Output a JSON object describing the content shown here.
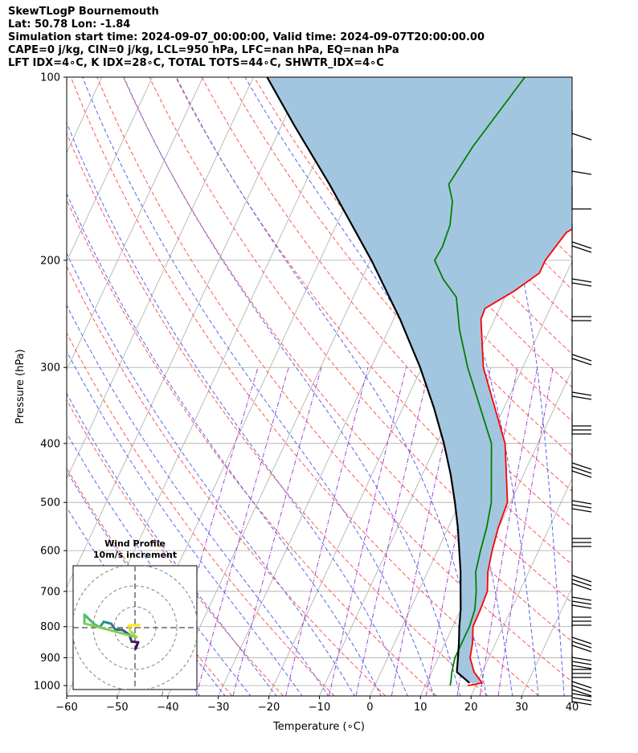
{
  "header": {
    "title": "SkewTLogP Bournemouth",
    "location": "Lat: 50.78   Lon: -1.84",
    "times": "Simulation start time: 2024-09-07_00:00:00, Valid time: 2024-09-07T20:00:00.00",
    "indices1": "CAPE=0 j/kg, CIN=0 j/kg, LCL=950 hPa, LFC=nan hPa, EQ=nan hPa",
    "indices2": "LFT IDX=4∘C, K IDX=28∘C, TOTAL TOTS=44∘C, SHWTR_IDX=4∘C"
  },
  "colors": {
    "temperature": "#ff0000",
    "dewpoint": "#008000",
    "parcel": "#000000",
    "cape_fill": "#a3c6e0",
    "dry_adiabat": "#ff5555",
    "moist_adiabat": "#5566ee",
    "mixing_ratio": "#9933cc",
    "isotherm": "#aaaaaa"
  },
  "chart_data": [
    {
      "type": "line",
      "subtype": "skew-t log-p",
      "xlabel": "Temperature (∘C)",
      "ylabel": "Pressure (hPa)",
      "xlim": [
        -60,
        40
      ],
      "ylim": [
        1040,
        100
      ],
      "x_ticks": [
        -60,
        -50,
        -40,
        -30,
        -20,
        -10,
        0,
        10,
        20,
        30,
        40
      ],
      "y_ticks": [
        100,
        200,
        300,
        400,
        500,
        600,
        700,
        800,
        900,
        1000
      ],
      "grid": true,
      "skew_deg_per_log_decade": 56,
      "series": [
        {
          "name": "temperature",
          "points": [
            [
              1000,
              18.4
            ],
            [
              990,
              21.0
            ],
            [
              950,
              18.4
            ],
            [
              900,
              16.3
            ],
            [
              850,
              15.4
            ],
            [
              800,
              14.0
            ],
            [
              750,
              13.9
            ],
            [
              700,
              13.6
            ],
            [
              650,
              11.9
            ],
            [
              600,
              10.8
            ],
            [
              550,
              9.9
            ],
            [
              500,
              9.4
            ],
            [
              400,
              3.5
            ],
            [
              300,
              -7.8
            ],
            [
              250,
              -12.7
            ],
            [
              240,
              -12.9
            ],
            [
              225,
              -8.8
            ],
            [
              210,
              -5.4
            ],
            [
              200,
              -5.4
            ],
            [
              180,
              -3.8
            ],
            [
              170,
              0.0
            ],
            [
              150,
              1.8
            ],
            [
              130,
              3.3
            ],
            [
              115,
              5.1
            ],
            [
              100,
              5.7
            ]
          ]
        },
        {
          "name": "dewpoint",
          "points": [
            [
              1000,
              14.9
            ],
            [
              985,
              14.7
            ],
            [
              950,
              14.0
            ],
            [
              900,
              13.3
            ],
            [
              850,
              13.3
            ],
            [
              800,
              13.3
            ],
            [
              750,
              12.8
            ],
            [
              700,
              11.4
            ],
            [
              650,
              9.5
            ],
            [
              600,
              8.5
            ],
            [
              550,
              7.6
            ],
            [
              500,
              6.2
            ],
            [
              400,
              0.8
            ],
            [
              300,
              -10.9
            ],
            [
              260,
              -16.0
            ],
            [
              230,
              -19.6
            ],
            [
              215,
              -23.8
            ],
            [
              200,
              -27.3
            ],
            [
              190,
              -27.0
            ],
            [
              175,
              -27.5
            ],
            [
              160,
              -29.2
            ],
            [
              150,
              -31.5
            ],
            [
              130,
              -30.2
            ],
            [
              100,
              -26.3
            ]
          ]
        },
        {
          "name": "parcel",
          "points": [
            [
              990,
              18.5
            ],
            [
              950,
              15.0
            ],
            [
              900,
              13.9
            ],
            [
              850,
              12.7
            ],
            [
              800,
              11.3
            ],
            [
              750,
              10.0
            ],
            [
              700,
              8.3
            ],
            [
              650,
              6.5
            ],
            [
              600,
              4.3
            ],
            [
              550,
              1.9
            ],
            [
              500,
              -1.0
            ],
            [
              450,
              -4.4
            ],
            [
              400,
              -8.6
            ],
            [
              350,
              -13.8
            ],
            [
              300,
              -20.3
            ],
            [
              250,
              -28.7
            ],
            [
              200,
              -39.8
            ],
            [
              150,
              -55.1
            ],
            [
              120,
              -67.5
            ],
            [
              100,
              -77.3
            ]
          ]
        }
      ]
    },
    {
      "type": "scatter",
      "subtype": "hodograph",
      "title": "Wind Profile",
      "subtitle": "10m/s increment",
      "ring_increment_ms": 10,
      "rings": 3,
      "u": [
        0.3,
        1.5,
        -1.6,
        -2.3,
        -2.4,
        -6.0,
        -9.5,
        -11.4,
        -15.0,
        -16.8,
        -19.2,
        -24.2,
        -24.2
      ],
      "v": [
        -10.1,
        -7.0,
        -6.7,
        -4.6,
        -3.6,
        -1.1,
        -0.8,
        1.9,
        2.8,
        0.2,
        1.4,
        6.2,
        2.0
      ],
      "u_tail": [
        0.8,
        -2.3,
        -3.0,
        2.1
      ],
      "v_tail": [
        -4.6,
        -1.6,
        1.0,
        1.3
      ]
    }
  ]
}
